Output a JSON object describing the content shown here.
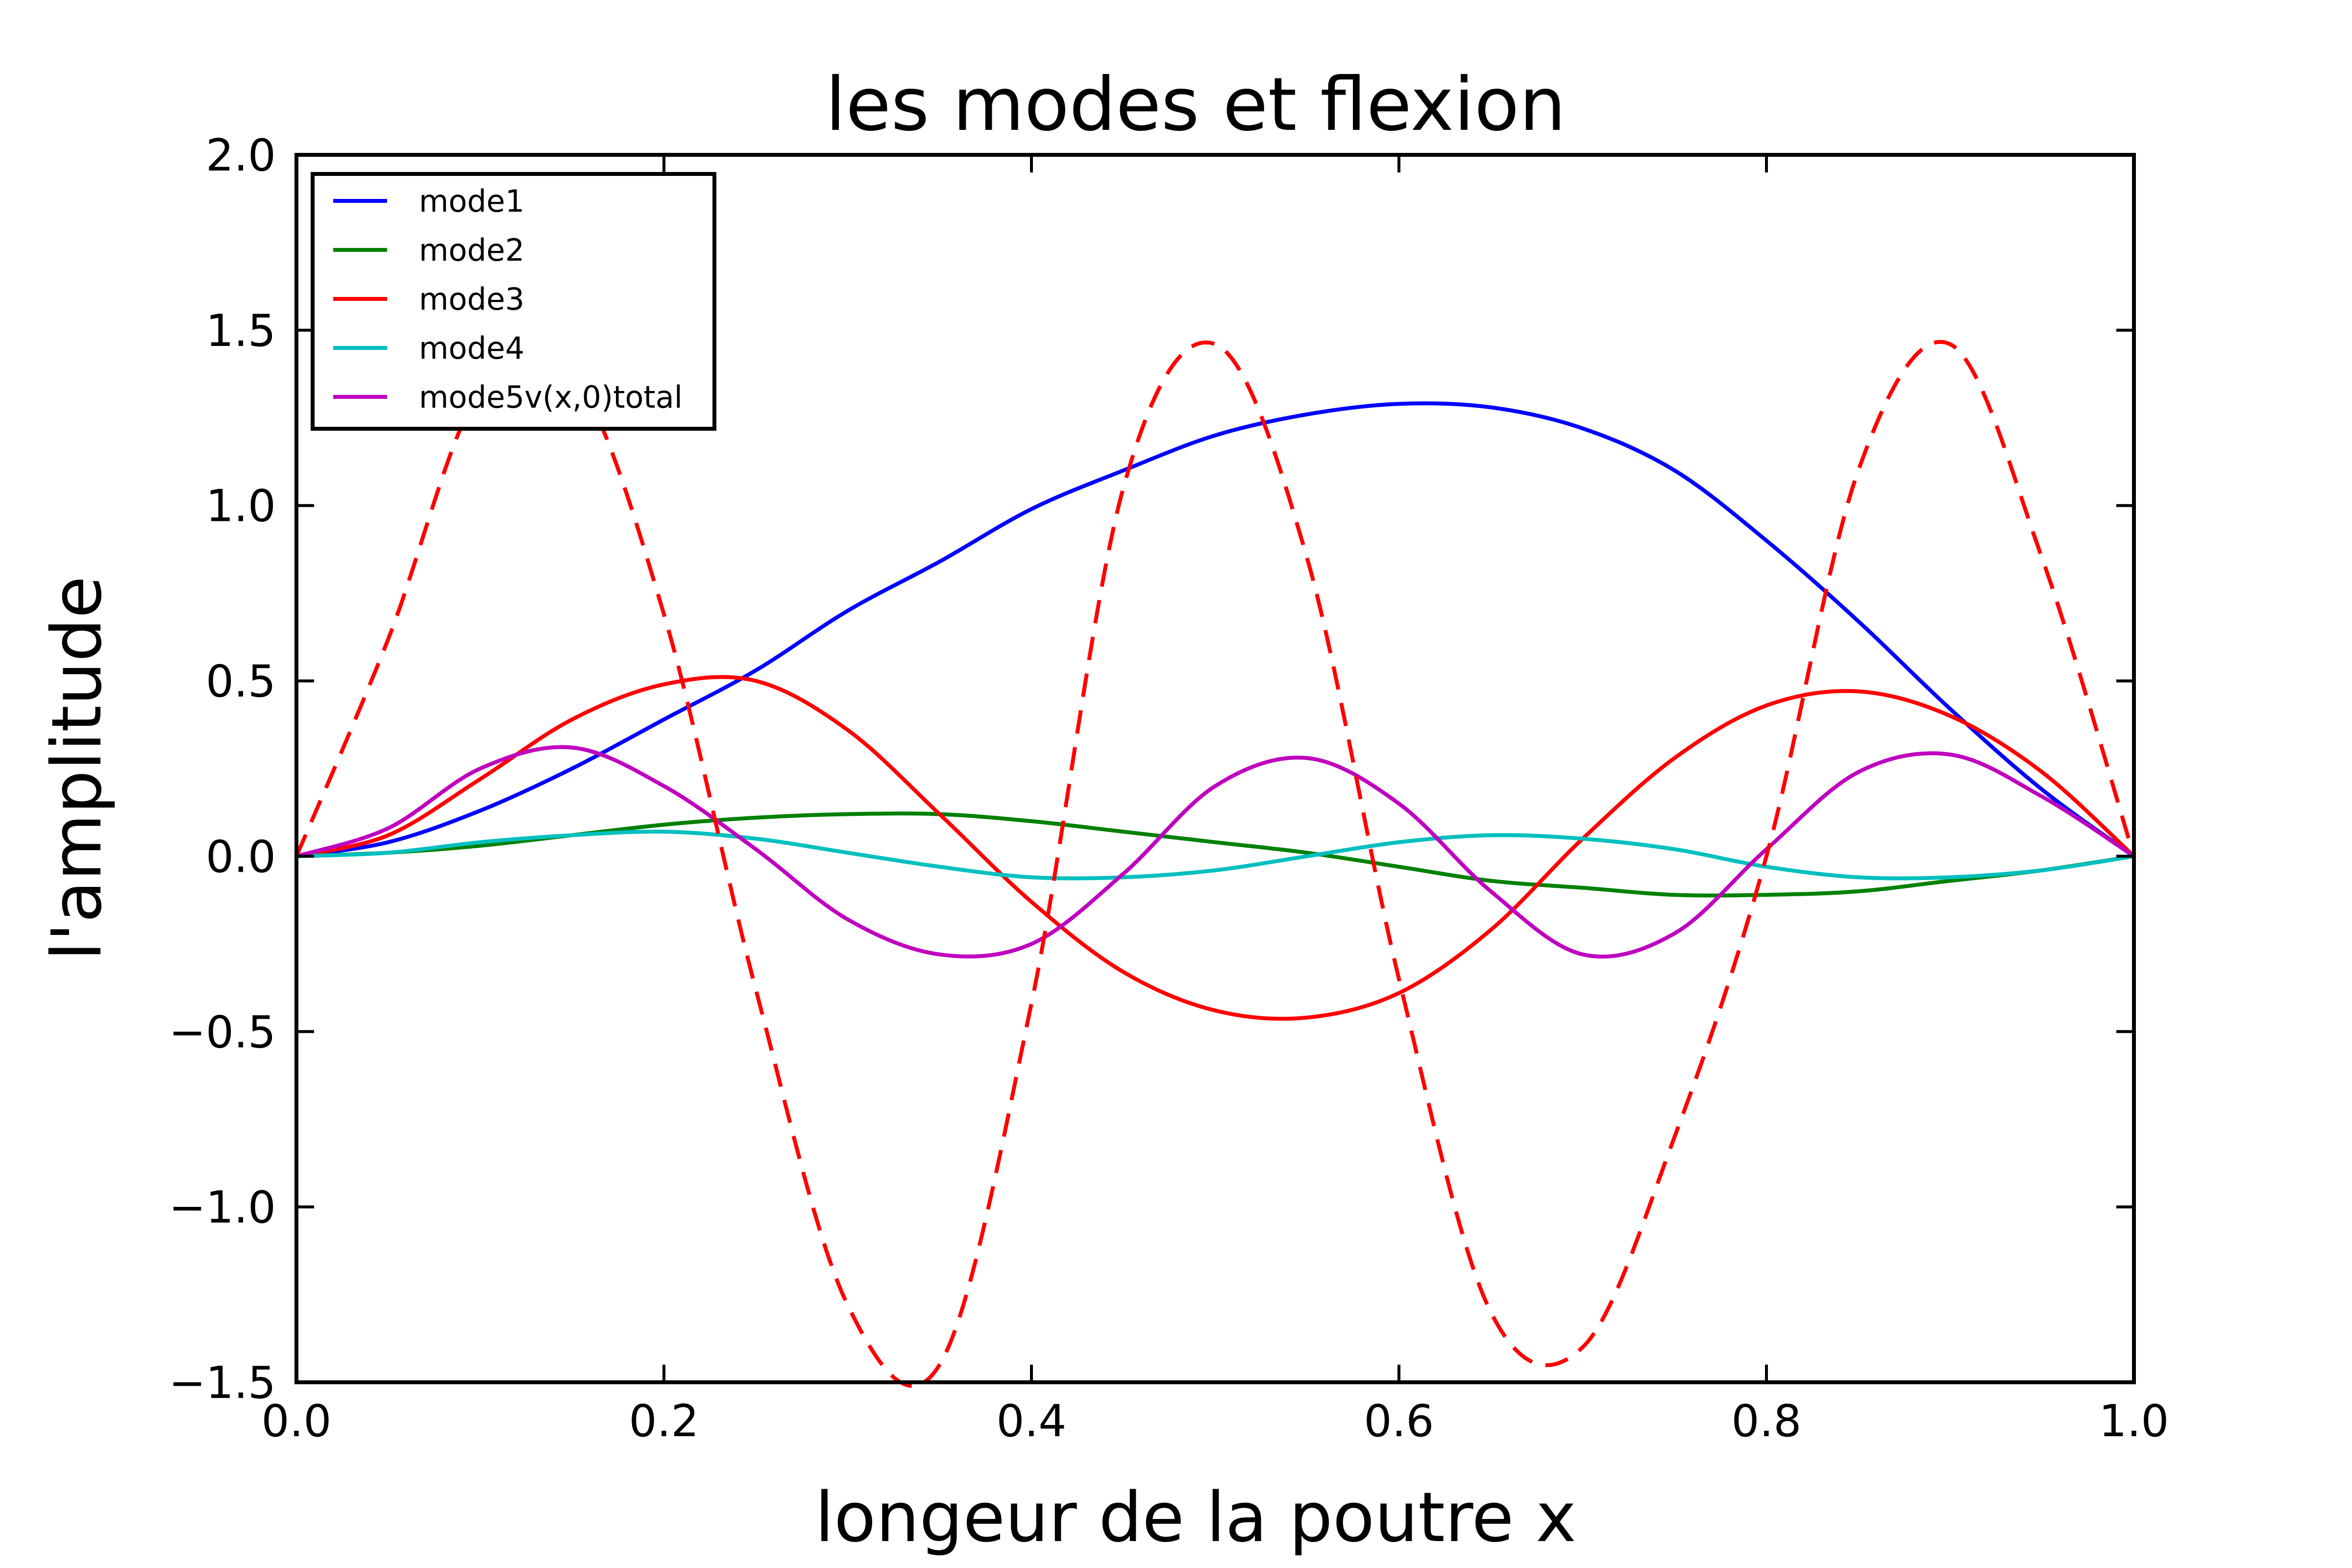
{
  "chart_data": {
    "type": "line",
    "title": "les modes et flexion",
    "xlabel": "longeur de la poutre  x",
    "ylabel": "l'amplitude",
    "xlim": [
      0.0,
      1.0
    ],
    "ylim": [
      -1.5,
      2.0
    ],
    "x_ticks": [
      "0.0",
      "0.2",
      "0.4",
      "0.6",
      "0.8",
      "1.0"
    ],
    "y_ticks": [
      "2.0",
      "1.5",
      "1.0",
      "0.5",
      "0.0",
      "−0.5",
      "−1.0",
      "−1.5"
    ],
    "grid": false,
    "legend_position": "top-left",
    "x": [
      0.0,
      0.05,
      0.1,
      0.15,
      0.2,
      0.25,
      0.3,
      0.35,
      0.4,
      0.45,
      0.5,
      0.55,
      0.6,
      0.65,
      0.7,
      0.75,
      0.8,
      0.85,
      0.9,
      0.95,
      1.0
    ],
    "series": [
      {
        "name": "mode1",
        "color": "#0000ff",
        "style": "solid",
        "values": [
          0.0,
          0.04,
          0.13,
          0.25,
          0.39,
          0.53,
          0.7,
          0.84,
          0.99,
          1.1,
          1.2,
          1.26,
          1.29,
          1.28,
          1.22,
          1.1,
          0.9,
          0.67,
          0.42,
          0.19,
          0.0
        ]
      },
      {
        "name": "mode2",
        "color": "#008000",
        "style": "solid",
        "values": [
          0.0,
          0.01,
          0.03,
          0.06,
          0.09,
          0.11,
          0.12,
          0.12,
          0.1,
          0.07,
          0.04,
          0.01,
          -0.03,
          -0.07,
          -0.09,
          -0.11,
          -0.11,
          -0.1,
          -0.07,
          -0.04,
          0.0
        ]
      },
      {
        "name": "mode3",
        "color": "#ff0000",
        "style": "solid",
        "values": [
          0.0,
          0.06,
          0.22,
          0.39,
          0.49,
          0.5,
          0.36,
          0.12,
          -0.13,
          -0.33,
          -0.44,
          -0.46,
          -0.39,
          -0.21,
          0.05,
          0.28,
          0.43,
          0.47,
          0.4,
          0.24,
          0.0
        ]
      },
      {
        "name": "mode4",
        "color": "#00bfbf",
        "style": "solid",
        "values": [
          0.0,
          0.01,
          0.04,
          0.06,
          0.07,
          0.05,
          0.01,
          -0.03,
          -0.06,
          -0.06,
          -0.04,
          0.0,
          0.04,
          0.06,
          0.05,
          0.02,
          -0.03,
          -0.06,
          -0.06,
          -0.04,
          0.0
        ]
      },
      {
        "name": "mode5v(x,0)total",
        "color": "#bf00bf",
        "style": "solid",
        "values": [
          0.0,
          0.08,
          0.25,
          0.31,
          0.2,
          0.02,
          -0.18,
          -0.28,
          -0.25,
          -0.05,
          0.2,
          0.28,
          0.15,
          -0.1,
          -0.28,
          -0.22,
          0.02,
          0.24,
          0.29,
          0.17,
          0.0
        ]
      },
      {
        "name": "",
        "color": "#ff0000",
        "style": "dashed",
        "values": [
          0.0,
          0.62,
          1.33,
          1.38,
          0.69,
          -0.38,
          -1.28,
          -1.45,
          -0.42,
          1.05,
          1.46,
          0.85,
          -0.35,
          -1.3,
          -1.4,
          -0.8,
          0.0,
          1.1,
          1.46,
          0.85,
          0.0
        ]
      }
    ]
  }
}
